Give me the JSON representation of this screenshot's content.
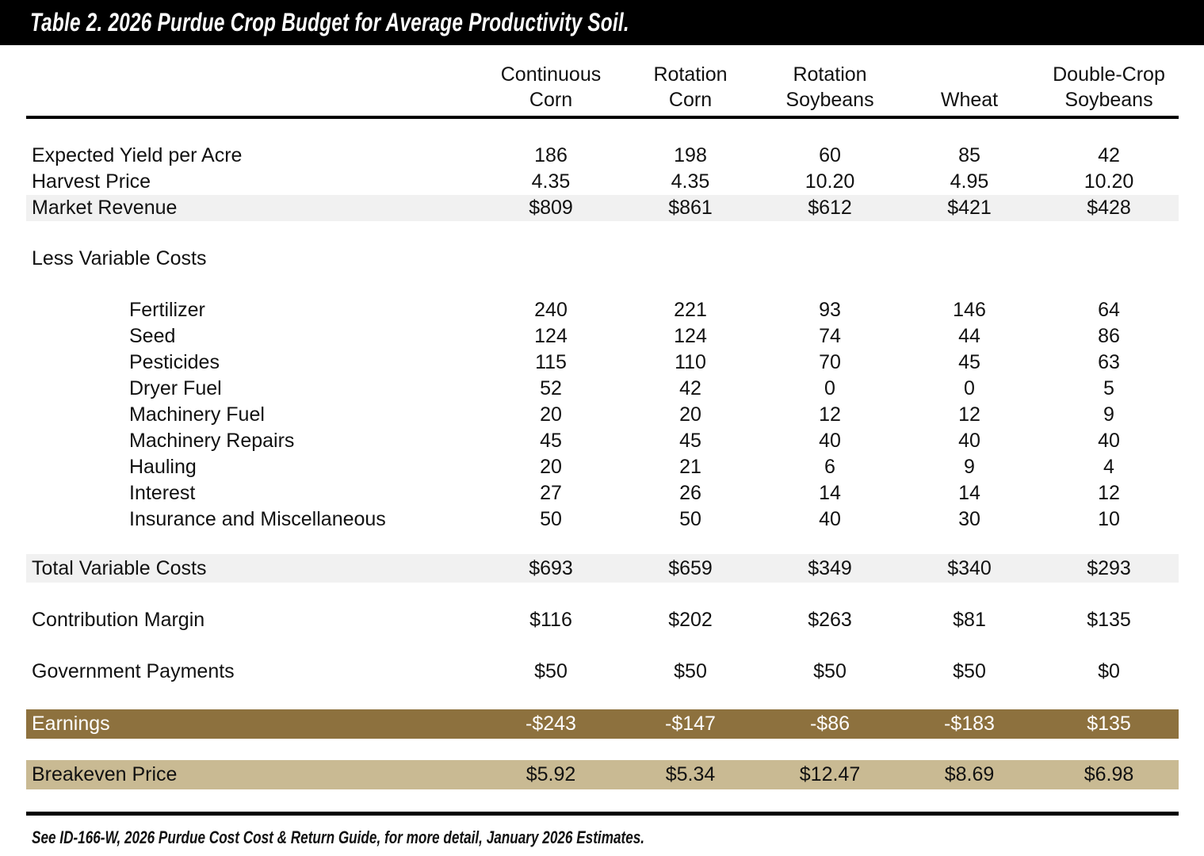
{
  "title": "Table 2. 2026 Purdue Crop Budget for Average Productivity Soil.",
  "footnote": "See ID-166-W, 2026 Purdue Cost Cost & Return Guide, for more detail, January 2026 Estimates.",
  "columns": [
    {
      "line1": "Continuous",
      "line2": "Corn"
    },
    {
      "line1": "Rotation",
      "line2": "Corn"
    },
    {
      "line1": "Rotation",
      "line2": "Soybeans"
    },
    {
      "line1": "",
      "line2": "Wheat"
    },
    {
      "line1": "Double-Crop",
      "line2": "Soybeans"
    }
  ],
  "rows": [
    {
      "label": "Expected Yield per Acre",
      "values": [
        "186",
        "198",
        "60",
        "85",
        "42"
      ]
    },
    {
      "label": "Harvest Price",
      "values": [
        "4.35",
        "4.35",
        "10.20",
        "4.95",
        "10.20"
      ]
    },
    {
      "label": "Market Revenue",
      "values": [
        "$809",
        "$861",
        "$612",
        "$421",
        "$428"
      ]
    },
    {
      "label": "Less Variable Costs",
      "values": [
        "",
        "",
        "",
        "",
        ""
      ]
    },
    {
      "label": "Fertilizer",
      "values": [
        "240",
        "221",
        "93",
        "146",
        "64"
      ]
    },
    {
      "label": "Seed",
      "values": [
        "124",
        "124",
        "74",
        "44",
        "86"
      ]
    },
    {
      "label": "Pesticides",
      "values": [
        "115",
        "110",
        "70",
        "45",
        "63"
      ]
    },
    {
      "label": "Dryer Fuel",
      "values": [
        "52",
        "42",
        "0",
        "0",
        "5"
      ]
    },
    {
      "label": "Machinery Fuel",
      "values": [
        "20",
        "20",
        "12",
        "12",
        "9"
      ]
    },
    {
      "label": "Machinery Repairs",
      "values": [
        "45",
        "45",
        "40",
        "40",
        "40"
      ]
    },
    {
      "label": "Hauling",
      "values": [
        "20",
        "21",
        "6",
        "9",
        "4"
      ]
    },
    {
      "label": "Interest",
      "values": [
        "27",
        "26",
        "14",
        "14",
        "12"
      ]
    },
    {
      "label": "Insurance and Miscellaneous",
      "values": [
        "50",
        "50",
        "40",
        "30",
        "10"
      ]
    },
    {
      "label": "Total Variable Costs",
      "values": [
        "$693",
        "$659",
        "$349",
        "$340",
        "$293"
      ]
    },
    {
      "label": "Contribution Margin",
      "values": [
        "$116",
        "$202",
        "$263",
        "$81",
        "$135"
      ]
    },
    {
      "label": "Government Payments",
      "values": [
        "$50",
        "$50",
        "$50",
        "$50",
        "$0"
      ]
    },
    {
      "label": "Earnings",
      "values": [
        "-$243",
        "-$147",
        "-$86",
        "-$183",
        "$135"
      ]
    },
    {
      "label": "Breakeven Price",
      "values": [
        "$5.92",
        "$5.34",
        "$12.47",
        "$8.69",
        "$6.98"
      ]
    }
  ],
  "colors": {
    "title_bar": "#000000",
    "row_highlight_gray": "#F1F1F1",
    "earnings_row_gold": "#8D713E",
    "breakeven_row_tan": "#C9BA93"
  }
}
